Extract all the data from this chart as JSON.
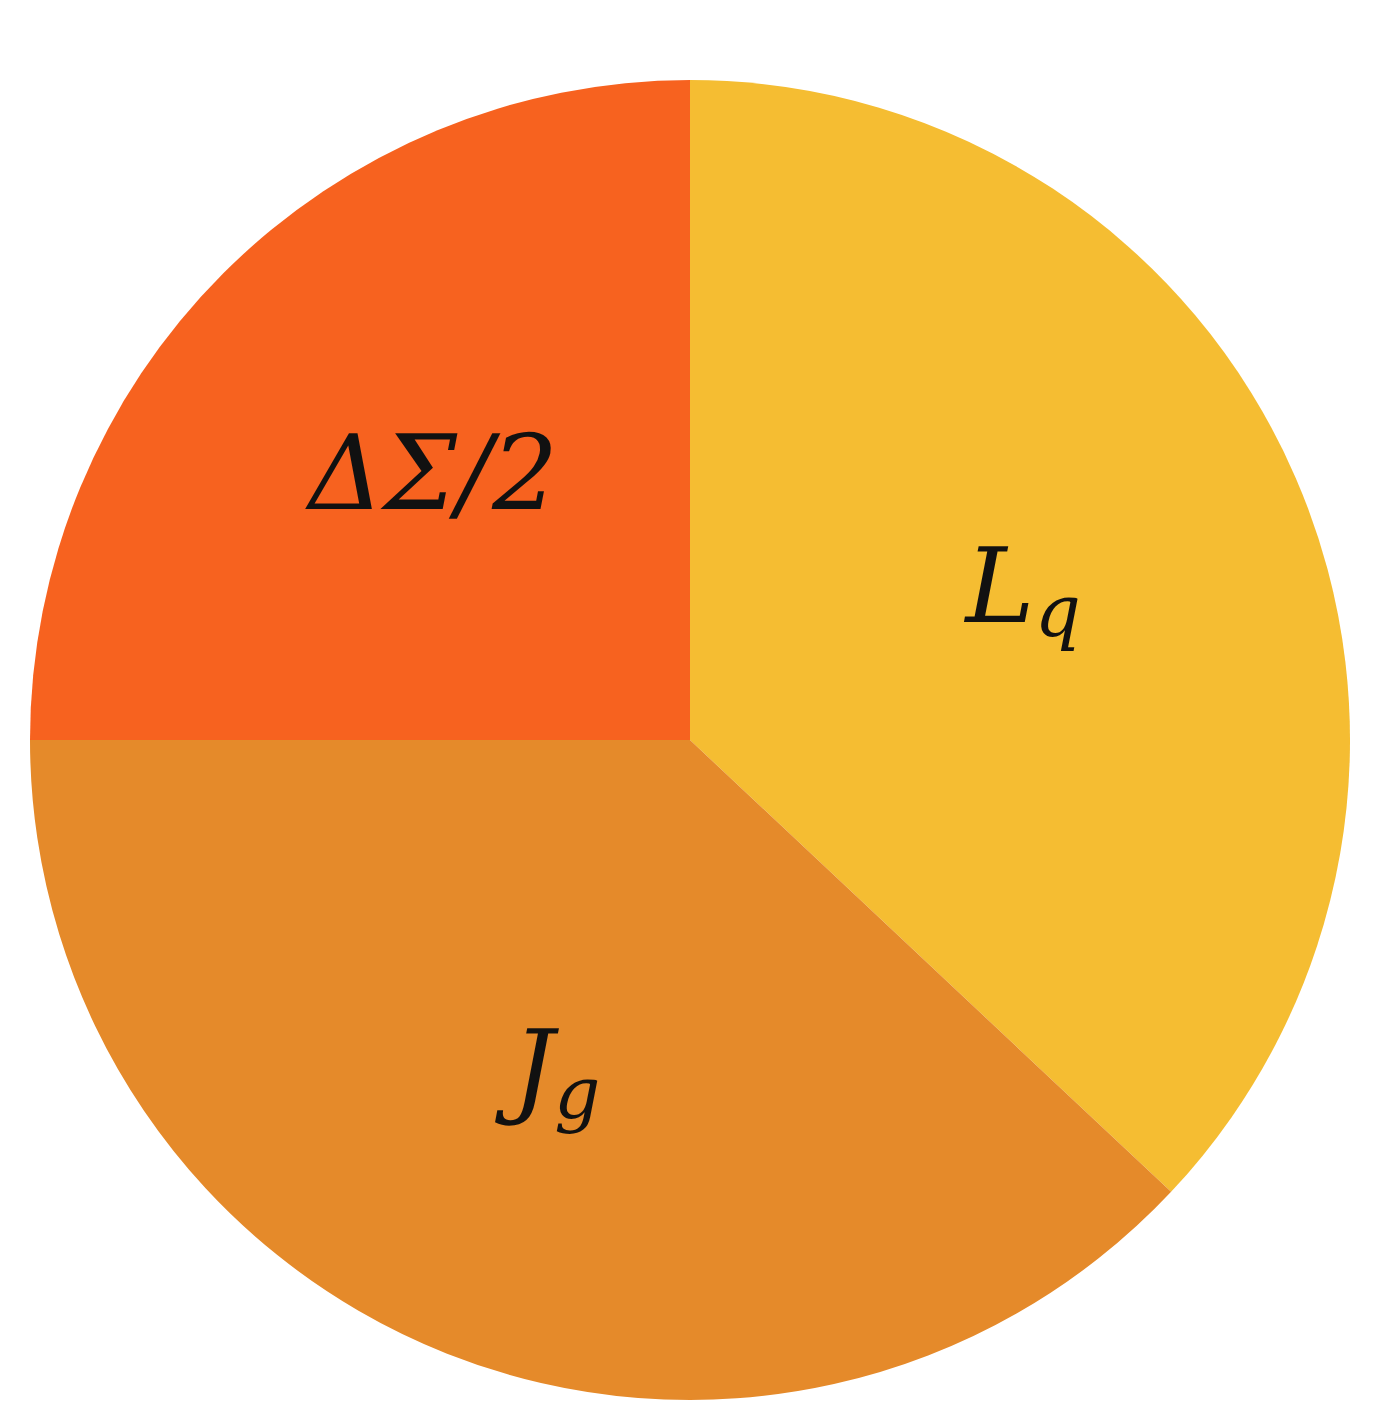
{
  "chart_data": {
    "type": "pie",
    "categories": [
      "L$_{q}$",
      "J$_{g}$",
      "ΔΣ/2"
    ],
    "values": [
      37,
      38,
      25
    ],
    "colors": [
      "#f5bd32",
      "#e58a2a",
      "#f7621f"
    ]
  }
}
